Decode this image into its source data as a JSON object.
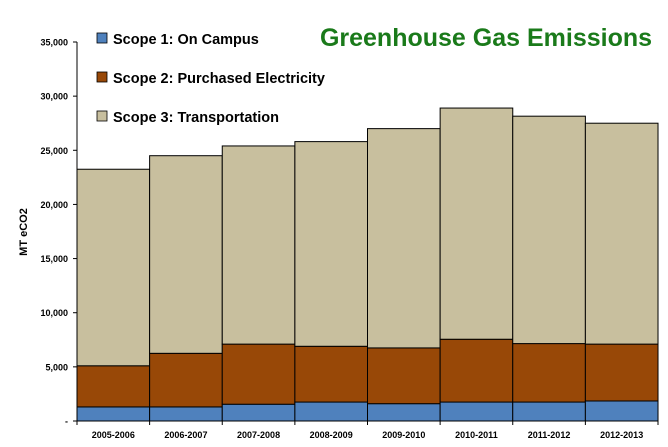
{
  "chart_data": {
    "type": "bar",
    "stacked": true,
    "title": "Greenhouse Gas Emissions",
    "xlabel": "",
    "ylabel": "MT eCO2",
    "ylim": [
      0,
      35000
    ],
    "yticks": [
      0,
      5000,
      10000,
      15000,
      20000,
      25000,
      30000,
      35000
    ],
    "ytick_labels": [
      "-",
      "5,000",
      "10,000",
      "15,000",
      "20,000",
      "25,000",
      "30,000",
      "35,000"
    ],
    "grid": false,
    "legend": "top-left",
    "categories": [
      "2005-2006",
      "2006-2007",
      "2007-2008",
      "2008-2009",
      "2009-2010",
      "2010-2011",
      "2011-2012",
      "2012-2013"
    ],
    "series": [
      {
        "name": "Scope 1: On Campus",
        "color": "#4f81bd",
        "values": [
          1300,
          1300,
          1550,
          1750,
          1600,
          1750,
          1750,
          1850
        ]
      },
      {
        "name": "Scope 2: Purchased Electricity",
        "color": "#984807",
        "values": [
          3800,
          4950,
          5550,
          5150,
          5150,
          5800,
          5400,
          5250
        ]
      },
      {
        "name": "Scope 3: Transportation",
        "color": "#c8bf9e",
        "values": [
          18150,
          18250,
          18300,
          18900,
          20250,
          21350,
          21000,
          20400
        ]
      }
    ],
    "title_color": "#1a7a1a"
  }
}
